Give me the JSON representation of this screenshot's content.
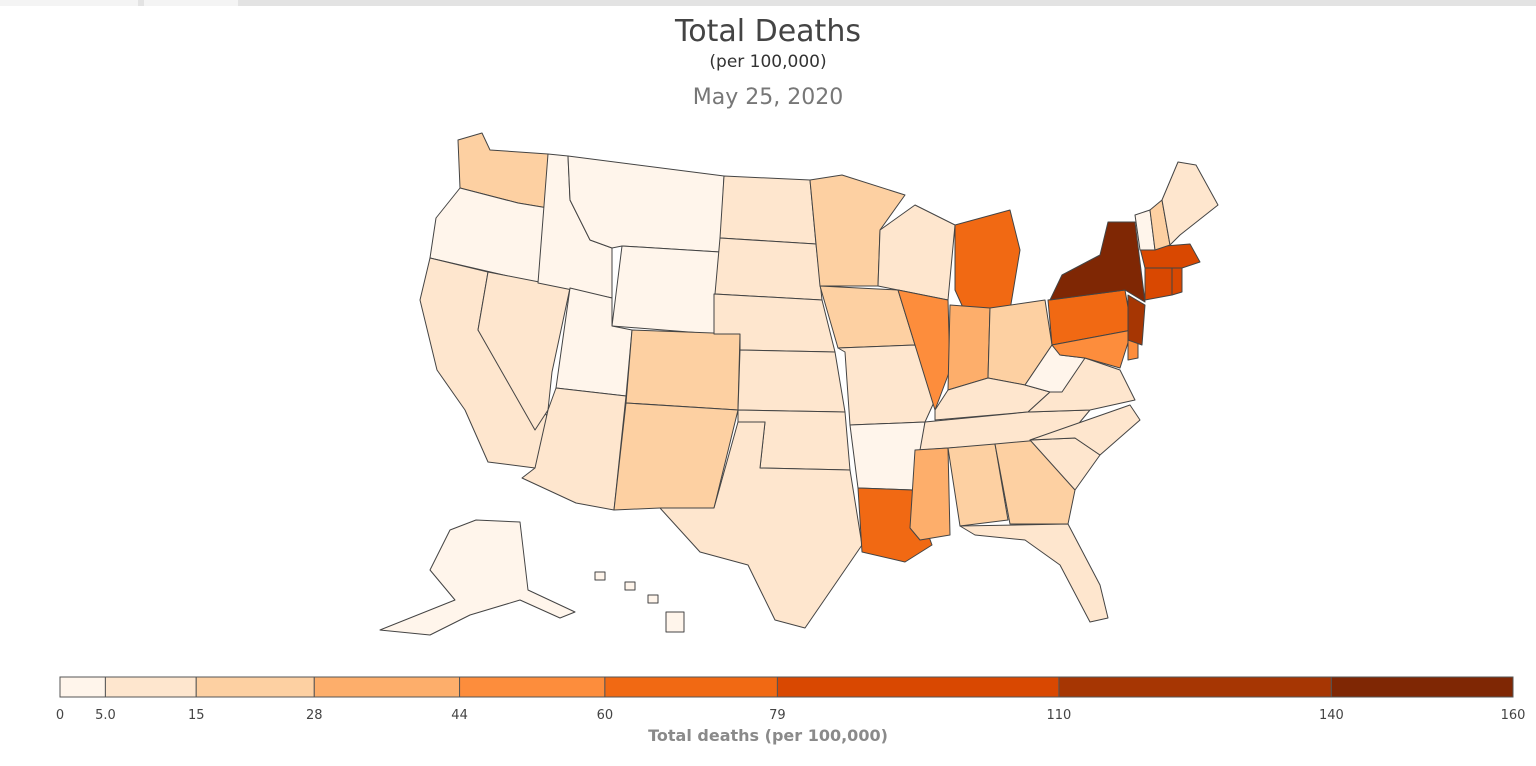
{
  "header": {
    "title": "Total Deaths",
    "subtitle": "(per 100,000)",
    "date": "May 25, 2020"
  },
  "legend": {
    "title": "Total deaths (per 100,000)",
    "breaks": [
      0,
      5.0,
      15,
      28,
      44,
      60,
      79,
      110,
      140,
      160
    ],
    "break_labels": [
      "0",
      "5.0",
      "15",
      "28",
      "44",
      "60",
      "79",
      "110",
      "140",
      "160"
    ],
    "colors": [
      "#fff5eb",
      "#fee6ce",
      "#fdd0a2",
      "#fdae6b",
      "#fd8d3c",
      "#f16913",
      "#d94801",
      "#a63603",
      "#7f2704"
    ]
  },
  "map_data": {
    "type": "choropleth",
    "region": "United States",
    "metric": "Total deaths (per 100,000)",
    "states": {
      "WA": "15-28",
      "OR": "0-5.0",
      "CA": "5.0-15",
      "ID": "0-5.0",
      "NV": "5.0-15",
      "MT": "0-5.0",
      "WY": "0-5.0",
      "UT": "0-5.0",
      "AZ": "5.0-15",
      "CO": "15-28",
      "NM": "15-28",
      "ND": "5.0-15",
      "SD": "5.0-15",
      "NE": "5.0-15",
      "KS": "5.0-15",
      "OK": "5.0-15",
      "TX": "5.0-15",
      "MN": "15-28",
      "IA": "15-28",
      "MO": "5.0-15",
      "AR": "0-5.0",
      "LA": "60-79",
      "WI": "5.0-15",
      "IL": "44-60",
      "MI": "60-79",
      "IN": "28-44",
      "OH": "15-28",
      "KY": "5.0-15",
      "TN": "5.0-15",
      "MS": "28-44",
      "AL": "15-28",
      "GA": "15-28",
      "FL": "5.0-15",
      "SC": "5.0-15",
      "NC": "5.0-15",
      "VA": "5.0-15",
      "WV": "0-5.0",
      "MD": "44-60",
      "DE": "44-60",
      "PA": "60-79",
      "NJ": "110-140",
      "NY": "140-160",
      "CT": "79-110",
      "RI": "79-110",
      "MA": "79-110",
      "VT": "0-5.0",
      "NH": "15-28",
      "ME": "5.0-15",
      "AK": "0-5.0",
      "HI": "0-5.0"
    }
  }
}
